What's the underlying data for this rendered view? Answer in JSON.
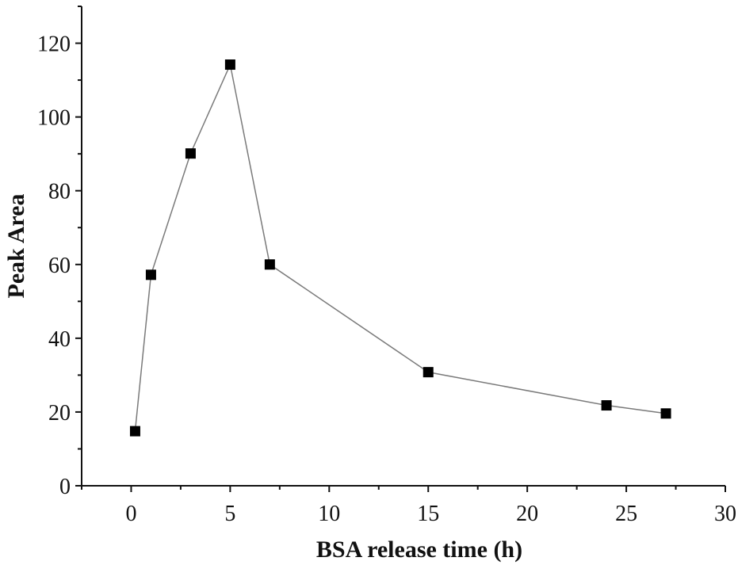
{
  "chart_data": {
    "type": "scatter",
    "xlabel": "BSA release time (h)",
    "ylabel": "Peak Area",
    "xlim": [
      -2.5,
      30
    ],
    "ylim": [
      0,
      130
    ],
    "x_ticks": [
      0,
      5,
      10,
      15,
      20,
      25,
      30
    ],
    "y_ticks": [
      0,
      20,
      40,
      60,
      80,
      100,
      120
    ],
    "grid": false,
    "connected": true,
    "marker": "square",
    "series": [
      {
        "x": [
          0.2,
          1,
          3,
          5,
          7,
          15,
          24,
          27
        ],
        "y": [
          14.8,
          57.2,
          90.1,
          114.2,
          60.0,
          30.8,
          21.8,
          19.6
        ]
      }
    ],
    "colors": {
      "marker": "#000000",
      "line": "#7a7a7a",
      "axis": "#111111"
    }
  }
}
